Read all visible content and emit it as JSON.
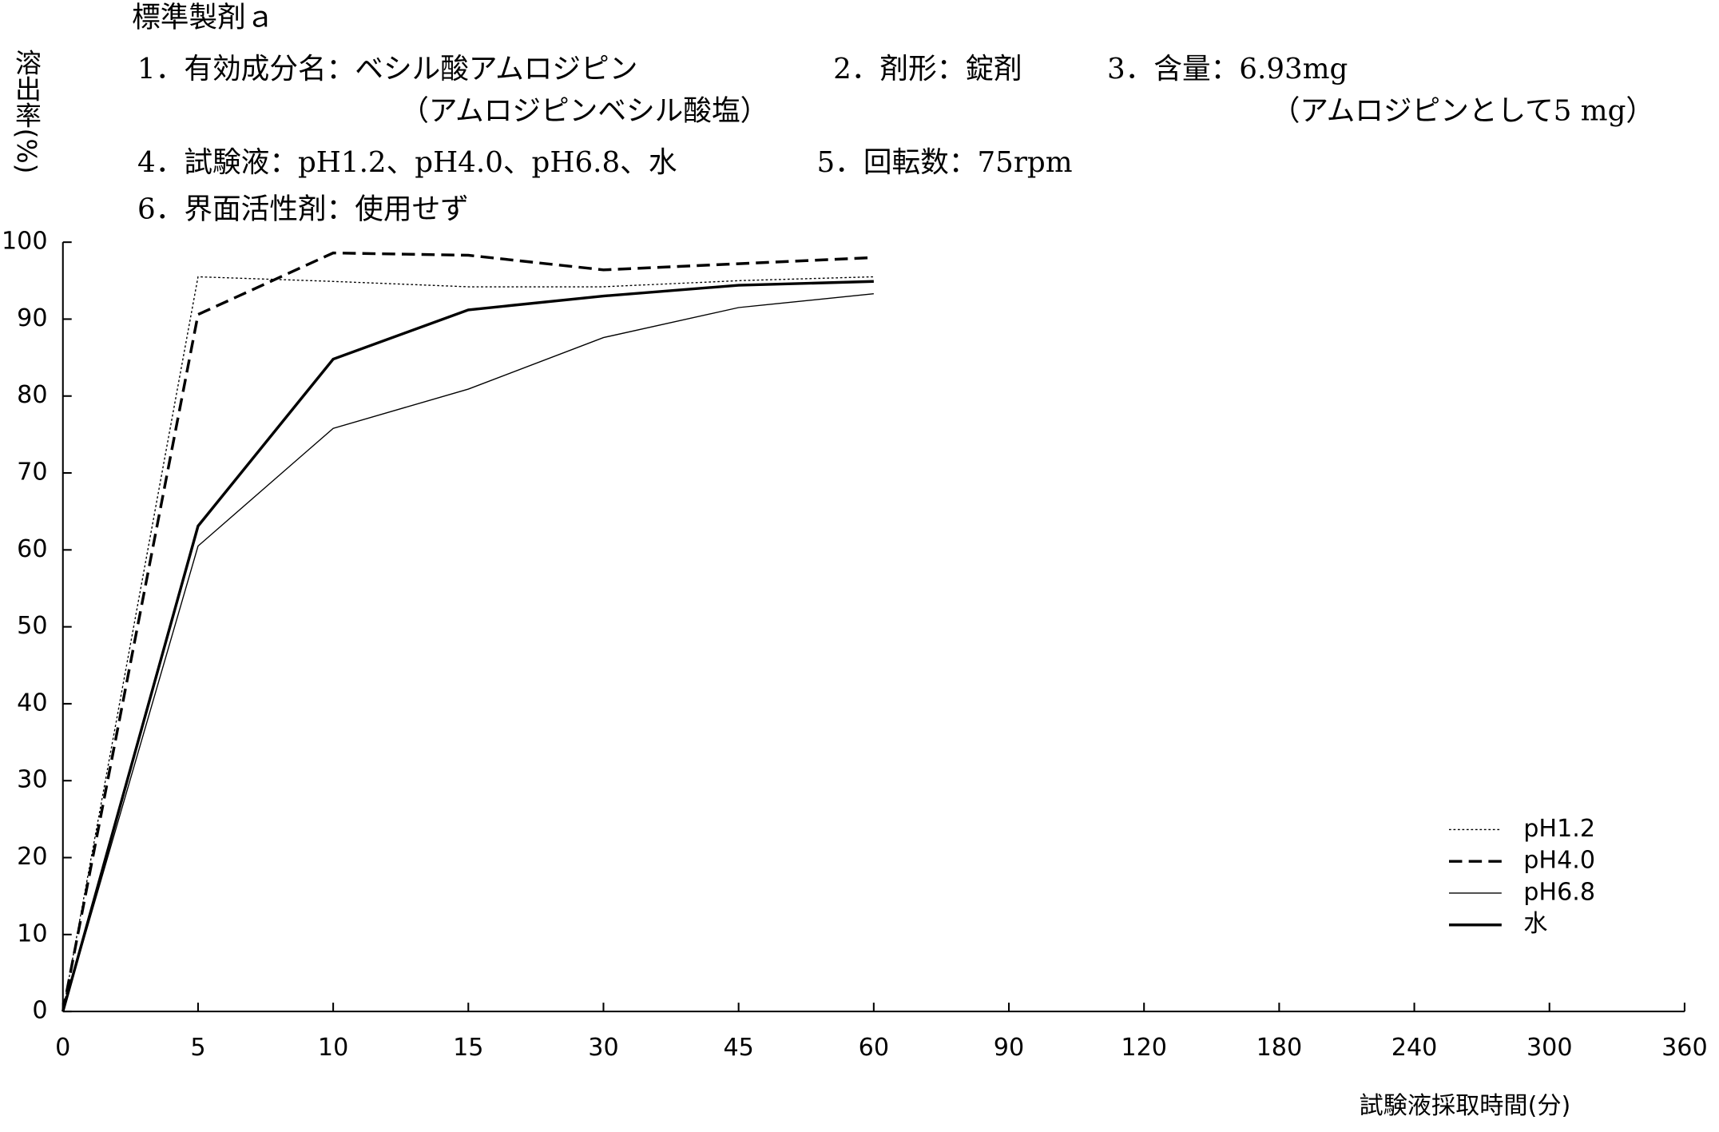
{
  "chart_data": {
    "type": "line",
    "title": "標準製剤ａ",
    "notes": [
      "1．有効成分名：ベシル酸アムロジピン",
      "（アムロジピンベシル酸塩）",
      "2．剤形：錠剤",
      "3．含量：6.93mg",
      "（アムロジピンとして5 mg）",
      "4．試験液：pH1.2、pH4.0、pH6.8、水",
      "5．回転数：75rpm",
      "6．界面活性剤：使用せず"
    ],
    "y_label": "溶出率(%)",
    "x_label": "試験液採取時間(分)",
    "categories": [
      "0",
      "5",
      "10",
      "15",
      "30",
      "45",
      "60",
      "90",
      "120",
      "180",
      "240",
      "300",
      "360"
    ],
    "ylim": [
      0,
      100
    ],
    "yticks": [
      0,
      10,
      20,
      30,
      40,
      50,
      60,
      70,
      80,
      90,
      100
    ],
    "legend": "lower right",
    "series": [
      {
        "name": "pH1.2",
        "color": "#000",
        "style": "dotted",
        "values": [
          0,
          95.5,
          94.9,
          94.2,
          94.2,
          95,
          95.5,
          null,
          null,
          null,
          null,
          null,
          null
        ]
      },
      {
        "name": "pH4.0",
        "color": "#000",
        "style": "dashed",
        "values": [
          0,
          90.6,
          98.6,
          98.3,
          96.4,
          97.2,
          98,
          null,
          null,
          null,
          null,
          null,
          null
        ]
      },
      {
        "name": "pH6.8",
        "color": "#000",
        "style": "thin",
        "values": [
          0,
          60.5,
          75.8,
          80.9,
          87.6,
          91.5,
          93.3,
          null,
          null,
          null,
          null,
          null,
          null
        ]
      },
      {
        "name": "水",
        "color": "#000",
        "style": "thick",
        "values": [
          0,
          63.1,
          84.8,
          91.2,
          93,
          94.4,
          94.9,
          null,
          null,
          null,
          null,
          null,
          null
        ]
      }
    ]
  }
}
